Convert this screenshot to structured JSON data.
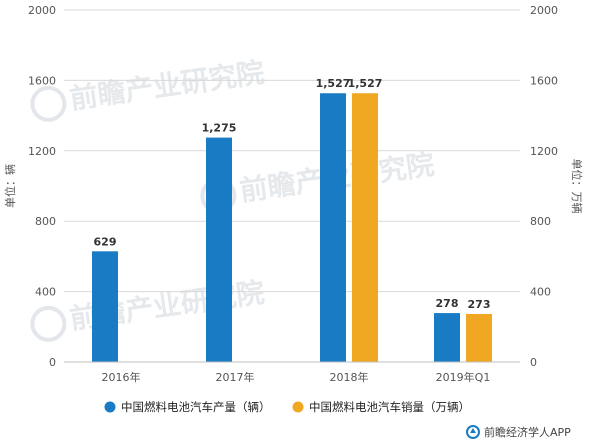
{
  "chart_data": {
    "type": "bar",
    "categories": [
      "2016年",
      "2017年",
      "2018年",
      "2019年Q1"
    ],
    "series": [
      {
        "name": "中国燃料电池汽车产量（辆）",
        "values": [
          629,
          1275,
          1527,
          278
        ],
        "color": "#1a7bc5",
        "axis": "left"
      },
      {
        "name": "中国燃料电池汽车销量（万辆）",
        "values": [
          null,
          null,
          1527,
          273
        ],
        "color": "#f0a722",
        "axis": "right"
      }
    ],
    "data_labels": [
      [
        "629",
        "1,275",
        "1,527",
        "278"
      ],
      [
        "",
        "",
        "1,527",
        "273"
      ]
    ],
    "ylabel": "单位：辆",
    "ylabel_right": "单位：万辆",
    "ylim": [
      0,
      2000
    ],
    "ylim_right": [
      0,
      2000
    ],
    "yticks": [
      "0",
      "400",
      "800",
      "1200",
      "1600",
      "2000"
    ],
    "yticks_right": [
      "0",
      "400",
      "800",
      "1200",
      "1600",
      "2000"
    ],
    "grid": true,
    "legend_position": "bottom"
  },
  "source": "前瞻经济学人APP",
  "watermark": "前瞻产业研究院"
}
